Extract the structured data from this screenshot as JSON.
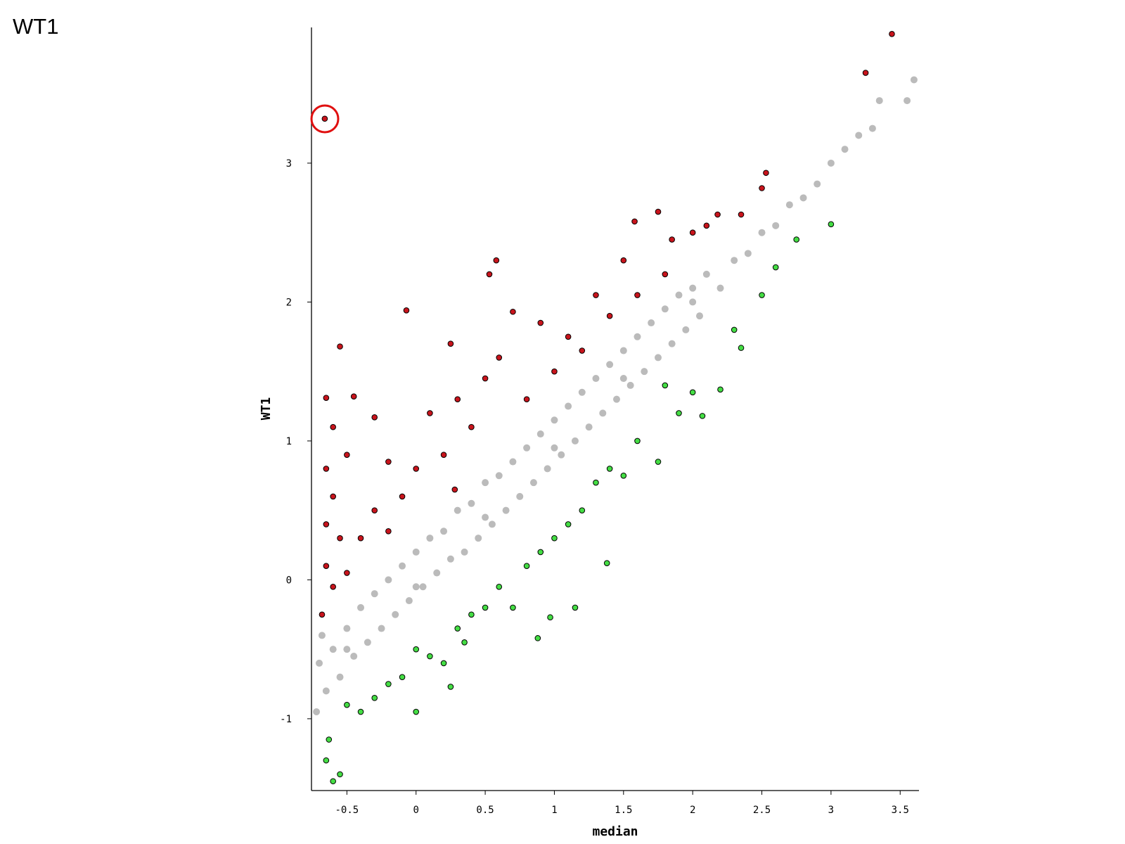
{
  "chart_data": {
    "type": "scatter",
    "title": "WT1",
    "xlabel": "median",
    "ylabel": "WT1",
    "xlim": [
      -0.756,
      3.636
    ],
    "ylim": [
      -1.517,
      3.977
    ],
    "xticks": [
      -0.5,
      0,
      0.5,
      1,
      1.5,
      2,
      2.5,
      3,
      3.5
    ],
    "yticks": [
      -1,
      0,
      1,
      2,
      3
    ],
    "series": [
      {
        "color": "#bbbbbb",
        "x": [
          -0.72,
          -0.7,
          -0.68,
          -0.65,
          -0.6,
          -0.55,
          -0.5,
          -0.45,
          -0.4,
          -0.35,
          -0.3,
          -0.25,
          -0.2,
          -0.15,
          -0.1,
          -0.05,
          0,
          0.05,
          0.1,
          0.15,
          0.2,
          0.25,
          0.3,
          0.35,
          0.4,
          0.45,
          0.5,
          0.55,
          0.6,
          0.65,
          0.7,
          0.75,
          0.8,
          0.85,
          0.9,
          0.95,
          1.0,
          1.05,
          1.1,
          1.15,
          1.2,
          1.25,
          1.3,
          1.35,
          1.4,
          1.45,
          1.5,
          1.55,
          1.6,
          1.65,
          1.7,
          1.75,
          1.8,
          1.85,
          1.9,
          1.95,
          2.0,
          2.05,
          2.1,
          2.2,
          2.3,
          2.4,
          2.5,
          2.6,
          2.7,
          2.8,
          2.9,
          3.0,
          3.1,
          3.2,
          3.3,
          3.35,
          3.55,
          3.6,
          0,
          0.5,
          1,
          1.5,
          2,
          -0.5
        ],
        "values": [
          -0.95,
          -0.6,
          -0.4,
          -0.8,
          -0.5,
          -0.7,
          -0.35,
          -0.55,
          -0.2,
          -0.45,
          -0.1,
          -0.35,
          0.0,
          -0.25,
          0.1,
          -0.15,
          0.2,
          -0.05,
          0.3,
          0.05,
          0.35,
          0.15,
          0.5,
          0.2,
          0.55,
          0.3,
          0.7,
          0.4,
          0.75,
          0.5,
          0.85,
          0.6,
          0.95,
          0.7,
          1.05,
          0.8,
          1.15,
          0.9,
          1.25,
          1.0,
          1.35,
          1.1,
          1.45,
          1.2,
          1.55,
          1.3,
          1.65,
          1.4,
          1.75,
          1.5,
          1.85,
          1.6,
          1.95,
          1.7,
          2.05,
          1.8,
          2.1,
          1.9,
          2.2,
          2.1,
          2.3,
          2.35,
          2.5,
          2.55,
          2.7,
          2.75,
          2.85,
          3.0,
          3.1,
          3.2,
          3.25,
          3.45,
          3.45,
          3.6,
          -0.05,
          0.45,
          0.95,
          1.45,
          2.0,
          -0.5
        ]
      },
      {
        "color": "#c8141c",
        "edgecolor": "#000000",
        "x": [
          -0.66,
          3.44,
          3.25,
          -0.55,
          -0.07,
          0.58,
          0.53,
          -0.65,
          -0.45,
          -0.3,
          -0.6,
          -0.5,
          -0.65,
          -0.6,
          -0.65,
          -0.55,
          -0.65,
          -0.6,
          -0.68,
          -0.5,
          -0.4,
          -0.3,
          -0.2,
          -0.1,
          0,
          0.1,
          0.2,
          0.25,
          0.3,
          0.4,
          0.5,
          0.6,
          0.7,
          0.8,
          0.9,
          1.0,
          1.1,
          1.2,
          1.3,
          1.4,
          1.5,
          1.58,
          1.75,
          1.85,
          2.0,
          2.1,
          2.18,
          2.35,
          2.5,
          2.53,
          0.28,
          -0.2,
          1.8,
          1.6
        ],
        "values": [
          3.32,
          3.93,
          3.65,
          1.68,
          1.94,
          2.3,
          2.2,
          1.31,
          1.32,
          1.17,
          1.1,
          0.9,
          0.8,
          0.6,
          0.4,
          0.3,
          0.1,
          -0.05,
          -0.25,
          0.05,
          0.3,
          0.5,
          0.35,
          0.6,
          0.8,
          1.2,
          0.9,
          1.7,
          1.3,
          1.1,
          1.45,
          1.6,
          1.93,
          1.3,
          1.85,
          1.5,
          1.75,
          1.65,
          2.05,
          1.9,
          2.3,
          2.58,
          2.65,
          2.45,
          2.5,
          2.55,
          2.63,
          2.63,
          2.82,
          2.93,
          0.65,
          0.85,
          2.2,
          2.05
        ]
      },
      {
        "color": "#44dd44",
        "edgecolor": "#000000",
        "x": [
          -0.65,
          -0.6,
          -0.55,
          -0.63,
          -0.5,
          -0.4,
          -0.3,
          0,
          -0.2,
          -0.1,
          0.0,
          0.1,
          0.2,
          0.25,
          0.35,
          0.4,
          0.5,
          0.6,
          0.7,
          0.88,
          0.8,
          0.9,
          0.97,
          1.0,
          1.1,
          1.15,
          1.2,
          1.3,
          1.38,
          1.4,
          1.5,
          1.6,
          1.75,
          1.9,
          2.0,
          2.07,
          2.2,
          2.3,
          2.35,
          2.5,
          2.6,
          2.75,
          3.0,
          1.8,
          0.3
        ],
        "values": [
          -1.3,
          -1.45,
          -1.4,
          -1.15,
          -0.9,
          -0.95,
          -0.85,
          -0.95,
          -0.75,
          -0.7,
          -0.5,
          -0.55,
          -0.6,
          -0.77,
          -0.45,
          -0.25,
          -0.2,
          -0.05,
          -0.2,
          -0.42,
          0.1,
          0.2,
          -0.27,
          0.3,
          0.4,
          -0.2,
          0.5,
          0.7,
          0.12,
          0.8,
          0.75,
          1.0,
          0.85,
          1.2,
          1.35,
          1.18,
          1.37,
          1.8,
          1.67,
          2.05,
          2.25,
          2.45,
          2.56,
          1.4,
          -0.35
        ]
      }
    ]
  }
}
